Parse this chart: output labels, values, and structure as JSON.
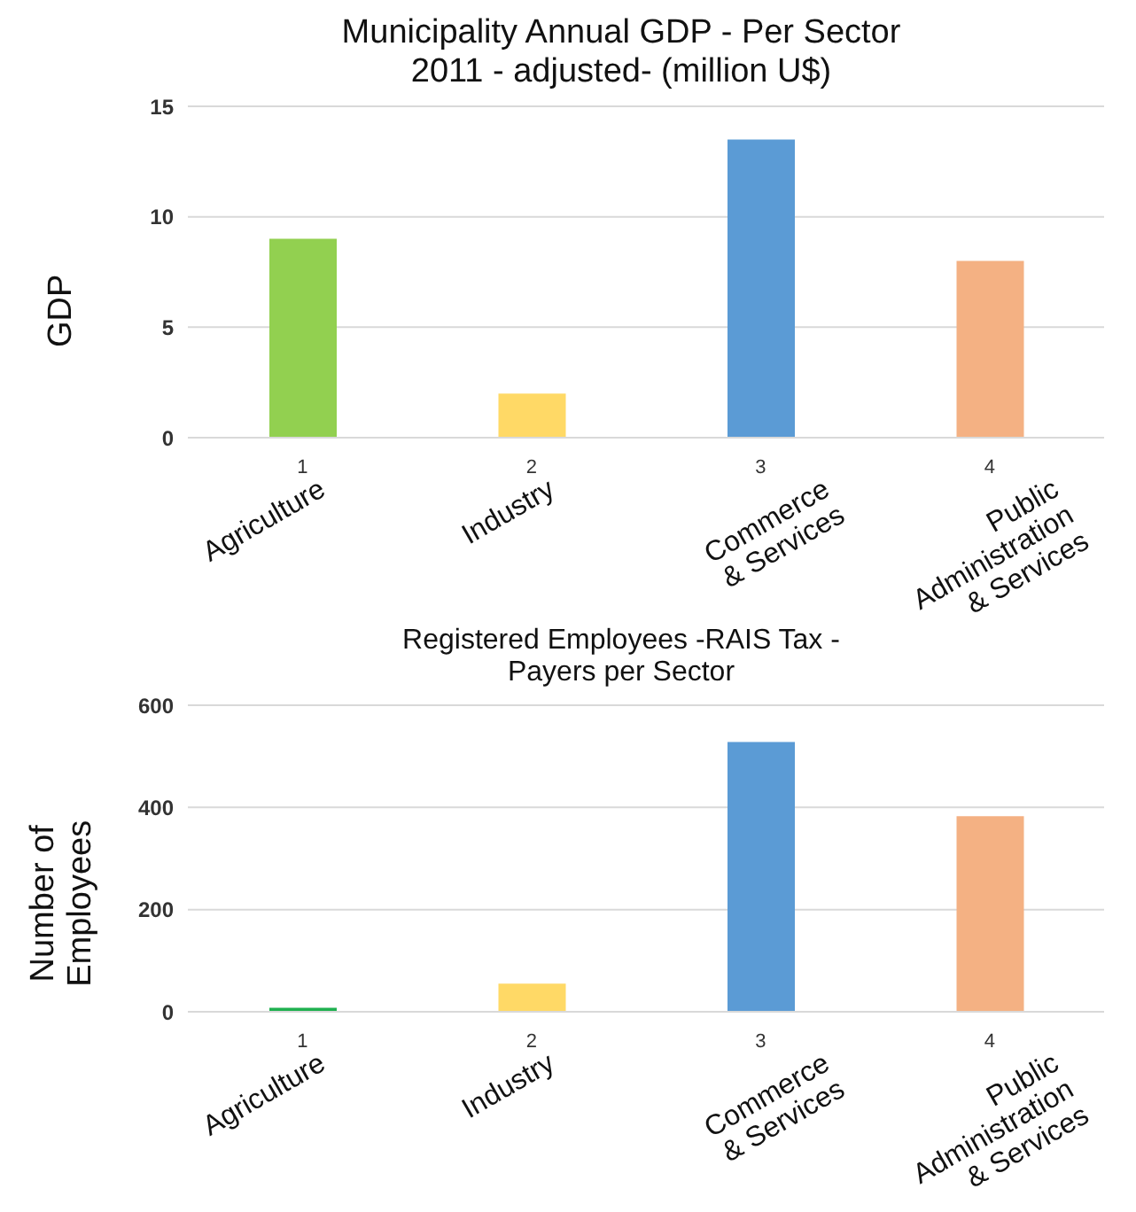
{
  "chart_data": [
    {
      "type": "bar",
      "title": "Municipality Annual  GDP - Per Sector\n2011 - adjusted-  (million U$)",
      "ylabel": "GDP",
      "categories": [
        "1",
        "2",
        "3",
        "4"
      ],
      "values": [
        9,
        2,
        13.5,
        8
      ],
      "colors": [
        "#92d050",
        "#ffd966",
        "#5b9bd5",
        "#f4b183"
      ],
      "ylim": [
        0,
        15
      ],
      "yticks": [
        0,
        5,
        10,
        15
      ],
      "grid": "y",
      "annotations": [
        "Agriculture",
        "Industry",
        "Commerce\n& Services",
        "Public\nAdministration\n& Services"
      ]
    },
    {
      "type": "bar",
      "title": "Registered Employees -RAIS  Tax -\nPayers per Sector",
      "ylabel": "Number of\nEmployees",
      "categories": [
        "1",
        "2",
        "3",
        "4"
      ],
      "values": [
        8,
        55,
        528,
        383
      ],
      "colors": [
        "#1fb050",
        "#ffd966",
        "#5b9bd5",
        "#f4b183"
      ],
      "ylim": [
        0,
        600
      ],
      "yticks": [
        0,
        200,
        400,
        600
      ],
      "grid": "y",
      "annotations": [
        "Agriculture",
        "Industry",
        "Commerce\n& Services",
        "Public\nAdministration\n& Services"
      ]
    }
  ]
}
